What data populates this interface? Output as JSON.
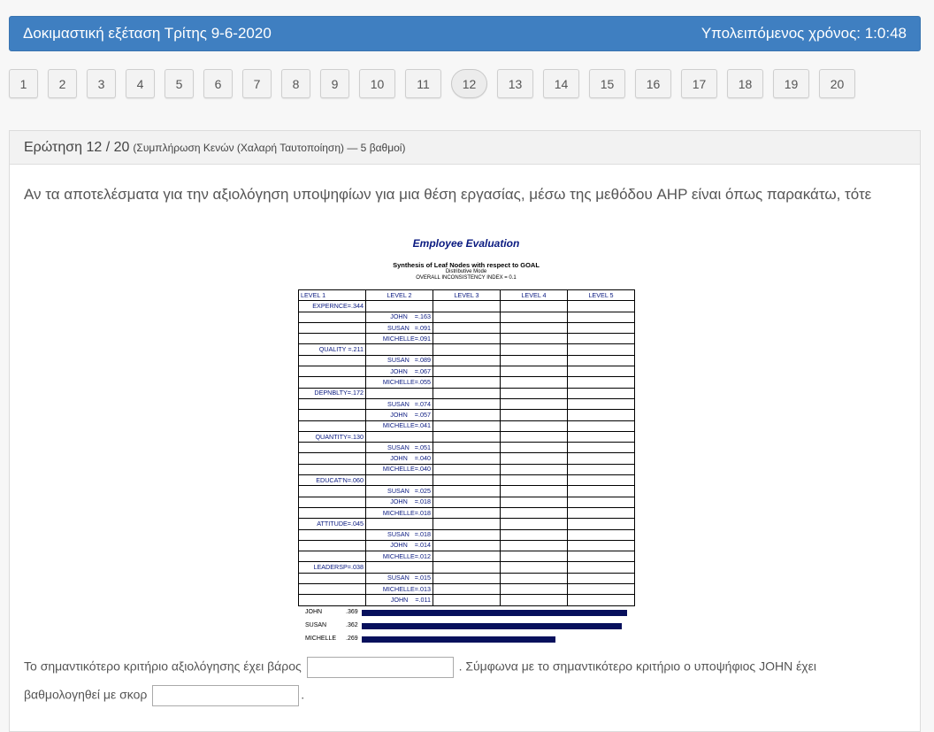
{
  "topbar": {
    "title": "Δοκιμαστική εξέταση Τρίτης 9-6-2020",
    "timer_label": "Υπολειπόμενος χρόνος: 1:0:48"
  },
  "pager": {
    "pages": [
      "1",
      "2",
      "3",
      "4",
      "5",
      "6",
      "7",
      "8",
      "9",
      "10",
      "11",
      "12",
      "13",
      "14",
      "15",
      "16",
      "17",
      "18",
      "19",
      "20"
    ],
    "active": "12"
  },
  "question": {
    "header_main": "Ερώτηση 12 / 20",
    "header_sub": "(Συμπλήρωση Κενών (Χαλαρή Ταυτοποίηση) — 5 βαθμοί)",
    "text": "Αν τα αποτελέσματα για την αξιολόγηση υποψηφίων για μια θέση εργασίας, μέσω της μεθόδου AHP είναι όπως παρακάτω, τότε",
    "fill_part1": "Το σημαντικότερο κριτήριο αξιολόγησης έχει βάρος",
    "fill_part2": ". Σύμφωνα με το σημαντικότερο κριτήριο ο υποψήφιος JOHN έχει",
    "fill_part3": "βαθμολογηθεί με σκορ",
    "fill_end": ".",
    "input1_value": "",
    "input2_value": ""
  },
  "figure": {
    "title": "Employee Evaluation",
    "subtitle": "Synthesis of Leaf Nodes with respect to GOAL",
    "mode": "Distributive Mode",
    "inconsistency": "OVERALL INCONSISTENCY INDEX =  0.1",
    "headers": [
      "LEVEL 1",
      "LEVEL 2",
      "LEVEL 3",
      "LEVEL 4",
      "LEVEL 5"
    ],
    "rows": [
      [
        "EXPERNCE=.344",
        ""
      ],
      [
        "",
        "JOHN    =.163"
      ],
      [
        "",
        "SUSAN   =.091"
      ],
      [
        "",
        "MICHELLE=.091"
      ],
      [
        "QUALITY =.211",
        ""
      ],
      [
        "",
        "SUSAN   =.089"
      ],
      [
        "",
        "JOHN    =.067"
      ],
      [
        "",
        "MICHELLE=.055"
      ],
      [
        "DEPNBLTY=.172",
        ""
      ],
      [
        "",
        "SUSAN   =.074"
      ],
      [
        "",
        "JOHN    =.057"
      ],
      [
        "",
        "MICHELLE=.041"
      ],
      [
        "QUANTITY=.130",
        ""
      ],
      [
        "",
        "SUSAN   =.051"
      ],
      [
        "",
        "JOHN    =.040"
      ],
      [
        "",
        "MICHELLE=.040"
      ],
      [
        "EDUCAT'N=.060",
        ""
      ],
      [
        "",
        "SUSAN   =.025"
      ],
      [
        "",
        "JOHN    =.018"
      ],
      [
        "",
        "MICHELLE=.018"
      ],
      [
        "ATTITUDE=.045",
        ""
      ],
      [
        "",
        "SUSAN   =.018"
      ],
      [
        "",
        "JOHN    =.014"
      ],
      [
        "",
        "MICHELLE=.012"
      ],
      [
        "LEADERSP=.038",
        ""
      ],
      [
        "",
        "SUSAN   =.015"
      ],
      [
        "",
        "MICHELLE=.013"
      ],
      [
        "",
        "JOHN    =.011"
      ]
    ],
    "bars": [
      {
        "name": "JOHN",
        "value": ".369",
        "score": 0.369
      },
      {
        "name": "SUSAN",
        "value": ".362",
        "score": 0.362
      },
      {
        "name": "MICHELLE",
        "value": ".269",
        "score": 0.269
      }
    ],
    "bar_color": "#07105c"
  }
}
